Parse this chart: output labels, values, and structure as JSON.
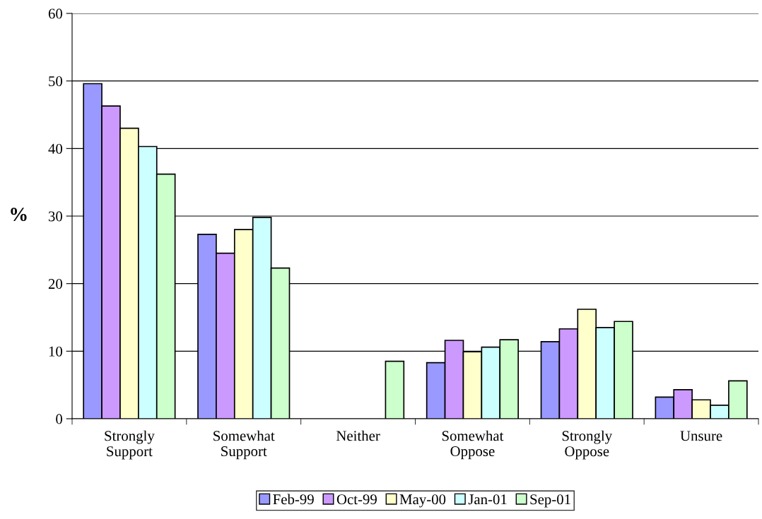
{
  "chart_data": {
    "type": "bar",
    "ylabel": "%",
    "categories": [
      "Strongly\nSupport",
      "Somewhat\nSupport",
      "Neither",
      "Somewhat\nOppose",
      "Strongly\nOppose",
      "Unsure"
    ],
    "series": [
      {
        "name": "Feb-99",
        "color": "#9999ff",
        "values": [
          49.6,
          27.3,
          null,
          8.3,
          11.4,
          3.2
        ]
      },
      {
        "name": "Oct-99",
        "color": "#cc99ff",
        "values": [
          46.3,
          24.5,
          null,
          11.6,
          13.3,
          4.3
        ]
      },
      {
        "name": "May-00",
        "color": "#ffffcc",
        "values": [
          43.0,
          28.0,
          null,
          9.9,
          16.2,
          2.8
        ]
      },
      {
        "name": "Jan-01",
        "color": "#ccffff",
        "values": [
          40.3,
          29.8,
          null,
          10.6,
          13.5,
          2.0
        ]
      },
      {
        "name": "Sep-01",
        "color": "#ccffcc",
        "values": [
          36.2,
          22.3,
          8.5,
          11.7,
          14.4,
          5.6
        ]
      }
    ],
    "ylim": [
      0,
      60
    ],
    "yticks": [
      0,
      10,
      20,
      30,
      40,
      50,
      60
    ],
    "grid": "y",
    "legend": "bottom"
  }
}
